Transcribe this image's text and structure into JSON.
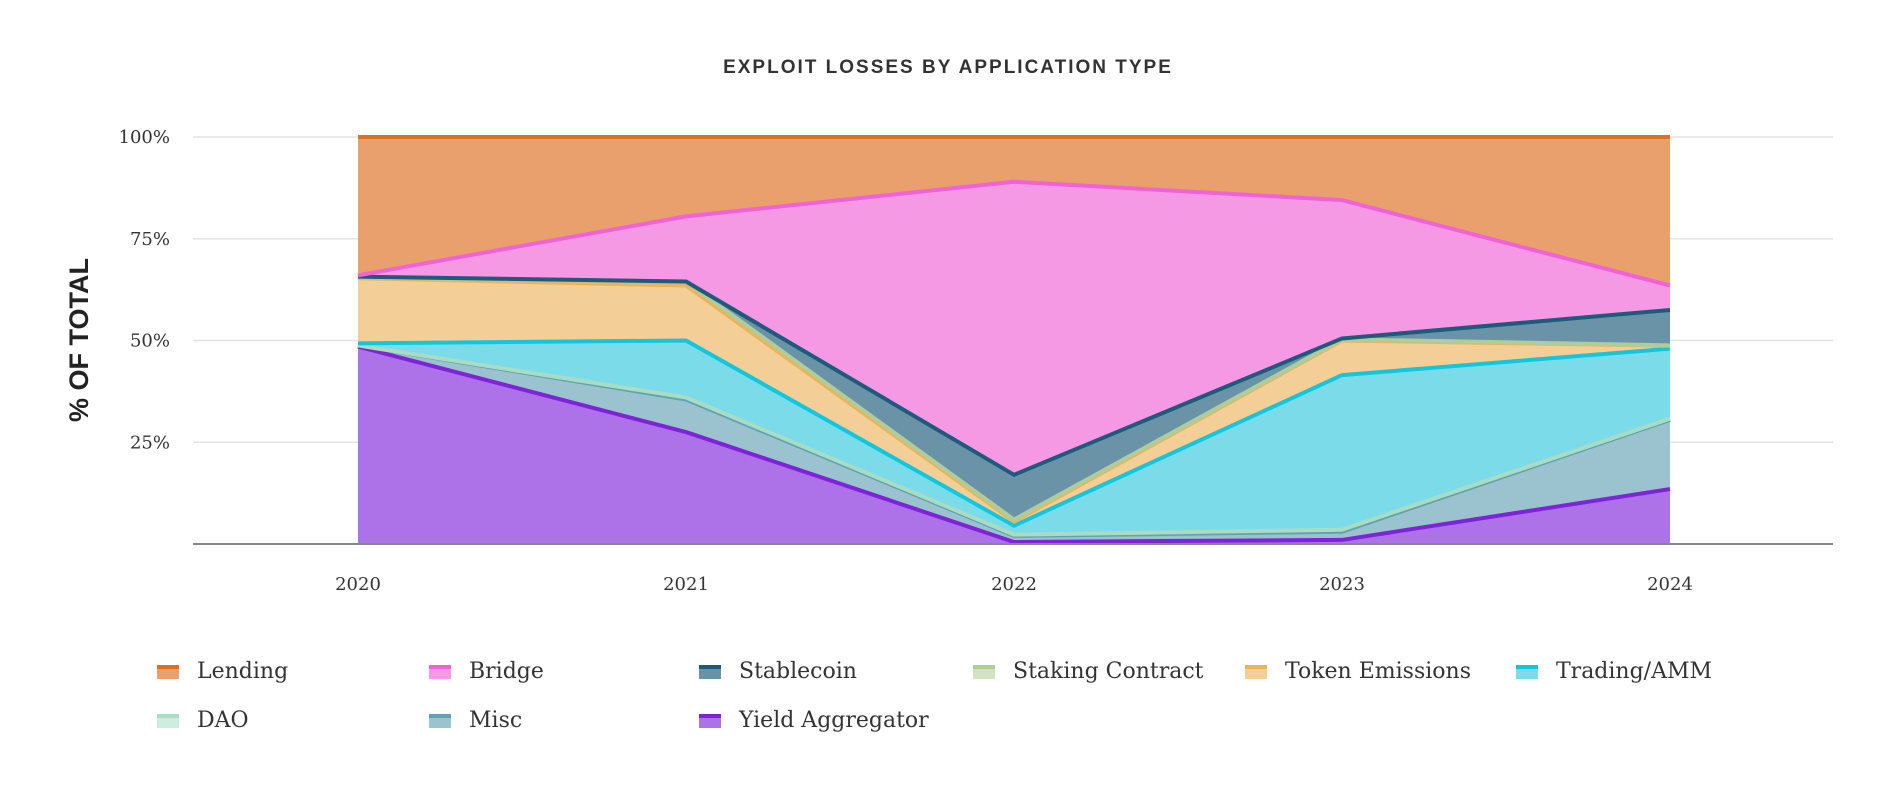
{
  "chart_data": {
    "type": "area",
    "stacked": true,
    "normalized": true,
    "title": "EXPLOIT LOSSES BY APPLICATION TYPE",
    "xlabel": "",
    "ylabel": "% OF TOTAL",
    "x": [
      "2020",
      "2021",
      "2022",
      "2023",
      "2024"
    ],
    "ylim": [
      0,
      100
    ],
    "yticks": [
      "25%",
      "50%",
      "75%",
      "100%"
    ],
    "ytick_values": [
      25,
      50,
      75,
      100
    ],
    "grid": true,
    "legend": "bottom",
    "series": [
      {
        "name": "Yield Aggregator",
        "values": [
          48.5,
          27.5,
          0.5,
          1,
          13.5
        ],
        "line": "#7f22d8",
        "fill": "#ad72e8"
      },
      {
        "name": "Misc",
        "values": [
          0.3,
          8,
          1.5,
          2,
          17
        ],
        "line": "#5fa3b3",
        "fill": "#9bc3cf"
      },
      {
        "name": "DAO",
        "values": [
          0,
          0.5,
          0.3,
          0.5,
          0.3
        ],
        "line": "#a9dcc2",
        "fill": "#cdeede"
      },
      {
        "name": "Trading/AMM",
        "values": [
          0.5,
          14,
          2.2,
          38,
          17.2
        ],
        "line": "#0fc8e0",
        "fill": "#7cdbe9"
      },
      {
        "name": "Token Emissions",
        "values": [
          16,
          13.5,
          1,
          8.5,
          0.7
        ],
        "line": "#eab45a",
        "fill": "#f3cf97"
      },
      {
        "name": "Staking Contract",
        "values": [
          0.2,
          1,
          0.5,
          0.3,
          0.1
        ],
        "line": "#b0cc98",
        "fill": "#d2e3c4"
      },
      {
        "name": "Stablecoin",
        "values": [
          0.2,
          0,
          11,
          0.2,
          8.7
        ],
        "line": "#1b5b7c",
        "fill": "#6a93a8"
      },
      {
        "name": "Bridge",
        "values": [
          0.3,
          16,
          72,
          34,
          6
        ],
        "line": "#f062da",
        "fill": "#f599e5"
      },
      {
        "name": "Lending",
        "values": [
          34,
          19.5,
          11,
          15.5,
          36.5
        ],
        "line": "#e0701e",
        "fill": "#e9a06c"
      }
    ]
  },
  "legend_order": [
    "Lending",
    "Bridge",
    "Stablecoin",
    "Staking Contract",
    "Token Emissions",
    "Trading/AMM",
    "DAO",
    "Misc",
    "Yield Aggregator"
  ]
}
